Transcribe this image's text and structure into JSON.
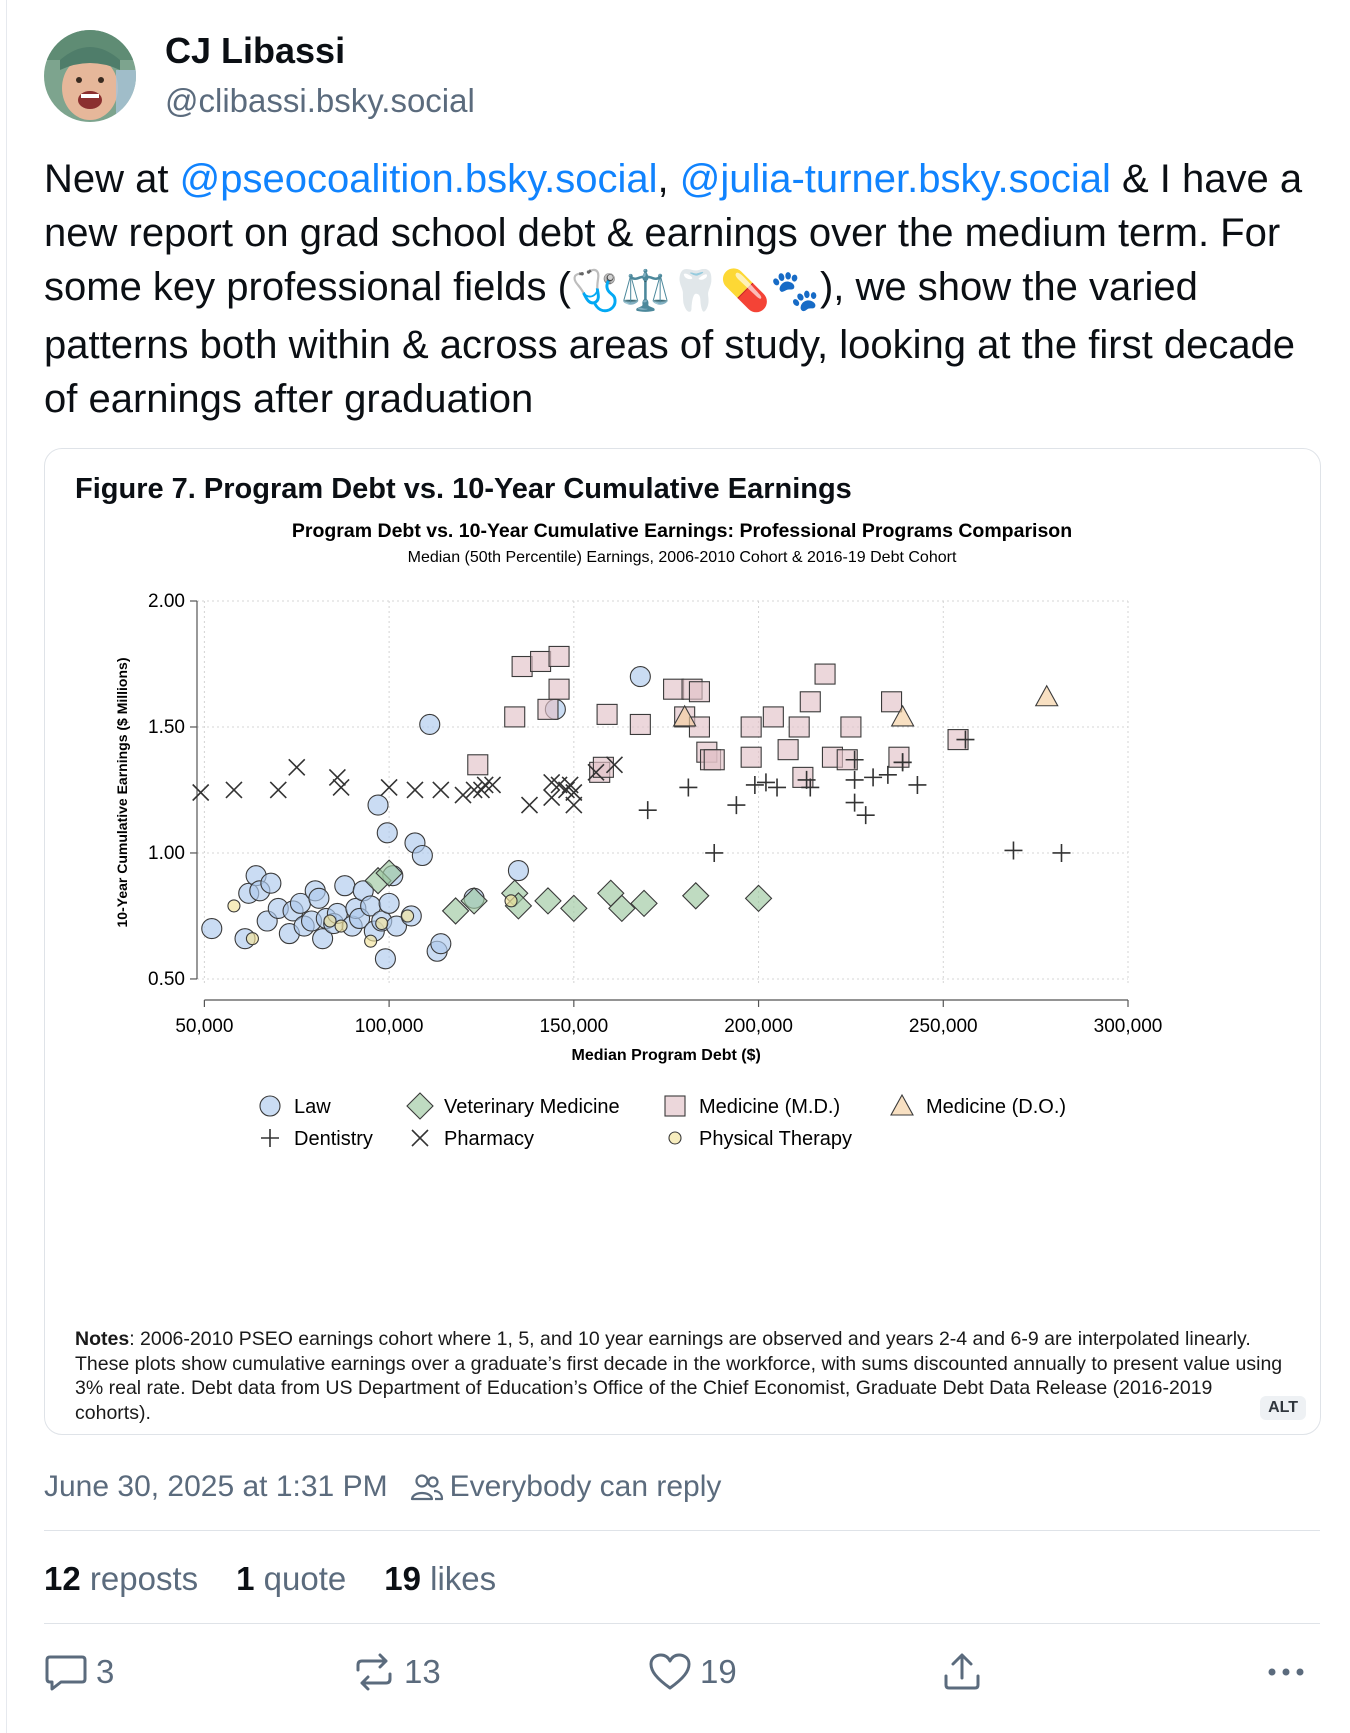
{
  "author": {
    "name": "CJ Libassi",
    "handle": "@clibassi.bsky.social"
  },
  "post": {
    "text_1": "New at ",
    "mention_1": "@pseocoalition.bsky.social",
    "text_2": ", ",
    "mention_2": "@julia-turner.bsky.social",
    "text_3": " & I have a new report on grad school debt & earnings over the medium term. For some key professional fields (",
    "emoji": "🩺⚖️🦷💊🐾",
    "text_4": "), we show the varied patterns both within & across areas of study, looking at the first decade of earnings after graduation"
  },
  "figure": {
    "caption": "Figure 7. Program Debt vs. 10-Year Cumulative Earnings",
    "notes_label": "Notes",
    "notes_text": ": 2006-2010 PSEO earnings cohort where 1, 5, and 10 year earnings are observed and years 2-4 and 6-9 are interpolated linearly. These plots show cumulative earnings over a graduate’s first decade in the workforce, with sums discounted annually to present value using 3% real rate. Debt data from US Department of Education’s Office of the Chief Economist, Graduate Debt Data Release (2016-2019 cohorts).",
    "alt_badge": "ALT"
  },
  "chart_data": {
    "type": "scatter",
    "title": "Program Debt vs. 10-Year Cumulative Earnings: Professional Programs Comparison",
    "subtitle": "Median (50th Percentile) Earnings, 2006-2010 Cohort & 2016-19 Debt Cohort",
    "xlabel": "Median Program Debt ($)",
    "ylabel": "10-Year Cumulative Earnings ($ Millions)",
    "xlim": [
      48000,
      300000
    ],
    "ylim": [
      0.48,
      2.0
    ],
    "xticks": [
      50000,
      100000,
      150000,
      200000,
      250000,
      300000
    ],
    "xtick_labels": [
      "50,000",
      "100,000",
      "150,000",
      "200,000",
      "250,000",
      "300,000"
    ],
    "yticks": [
      0.5,
      1.0,
      1.5,
      2.0
    ],
    "ytick_labels": [
      "0.50",
      "1.00",
      "1.50",
      "2.00"
    ],
    "grid": true,
    "legend_position": "bottom",
    "series": [
      {
        "name": "Law",
        "marker": "circle",
        "color": "#aec9ec",
        "points": [
          [
            52000,
            0.7
          ],
          [
            61000,
            0.66
          ],
          [
            62000,
            0.84
          ],
          [
            64000,
            0.91
          ],
          [
            65000,
            0.85
          ],
          [
            67000,
            0.73
          ],
          [
            68000,
            0.88
          ],
          [
            70000,
            0.78
          ],
          [
            73000,
            0.68
          ],
          [
            74000,
            0.77
          ],
          [
            76000,
            0.8
          ],
          [
            77000,
            0.71
          ],
          [
            79000,
            0.73
          ],
          [
            80000,
            0.85
          ],
          [
            81000,
            0.82
          ],
          [
            82000,
            0.66
          ],
          [
            83000,
            0.74
          ],
          [
            85000,
            0.72
          ],
          [
            86000,
            0.76
          ],
          [
            88000,
            0.87
          ],
          [
            90000,
            0.71
          ],
          [
            91000,
            0.78
          ],
          [
            92000,
            0.74
          ],
          [
            93000,
            0.85
          ],
          [
            95000,
            0.79
          ],
          [
            96000,
            0.69
          ],
          [
            97000,
            1.19
          ],
          [
            98000,
            0.73
          ],
          [
            99000,
            0.58
          ],
          [
            99500,
            1.08
          ],
          [
            100000,
            0.8
          ],
          [
            101000,
            0.91
          ],
          [
            102000,
            0.71
          ],
          [
            106000,
            0.75
          ],
          [
            107000,
            1.04
          ],
          [
            109000,
            0.99
          ],
          [
            111000,
            1.51
          ],
          [
            113000,
            0.61
          ],
          [
            114000,
            0.64
          ],
          [
            123000,
            0.82
          ],
          [
            135000,
            0.93
          ],
          [
            145000,
            1.57
          ],
          [
            168000,
            1.7
          ]
        ]
      },
      {
        "name": "Veterinary Medicine",
        "marker": "diamond",
        "color": "#9cc7a0",
        "points": [
          [
            97000,
            0.89
          ],
          [
            100000,
            0.92
          ],
          [
            118000,
            0.77
          ],
          [
            123000,
            0.81
          ],
          [
            134000,
            0.84
          ],
          [
            135000,
            0.79
          ],
          [
            143000,
            0.81
          ],
          [
            150000,
            0.78
          ],
          [
            160000,
            0.84
          ],
          [
            163000,
            0.78
          ],
          [
            169000,
            0.8
          ],
          [
            183000,
            0.83
          ],
          [
            200000,
            0.82
          ]
        ]
      },
      {
        "name": "Medicine (M.D.)",
        "marker": "square",
        "color": "#e2c2c8",
        "points": [
          [
            124000,
            1.35
          ],
          [
            134000,
            1.54
          ],
          [
            136000,
            1.74
          ],
          [
            141000,
            1.76
          ],
          [
            143000,
            1.57
          ],
          [
            146000,
            1.78
          ],
          [
            146000,
            1.65
          ],
          [
            157000,
            1.32
          ],
          [
            158000,
            1.34
          ],
          [
            159000,
            1.55
          ],
          [
            168000,
            1.51
          ],
          [
            177000,
            1.65
          ],
          [
            180000,
            1.54
          ],
          [
            182000,
            1.65
          ],
          [
            184000,
            1.64
          ],
          [
            184000,
            1.5
          ],
          [
            186000,
            1.4
          ],
          [
            187000,
            1.37
          ],
          [
            188000,
            1.37
          ],
          [
            198000,
            1.5
          ],
          [
            198000,
            1.38
          ],
          [
            204000,
            1.54
          ],
          [
            208000,
            1.41
          ],
          [
            211000,
            1.5
          ],
          [
            212000,
            1.3
          ],
          [
            214000,
            1.6
          ],
          [
            218000,
            1.71
          ],
          [
            220000,
            1.38
          ],
          [
            224000,
            1.37
          ],
          [
            225000,
            1.5
          ],
          [
            236000,
            1.6
          ],
          [
            238000,
            1.38
          ],
          [
            254000,
            1.45
          ]
        ]
      },
      {
        "name": "Medicine (D.O.)",
        "marker": "triangle",
        "color": "#f5cfa1",
        "points": [
          [
            180000,
            1.54
          ],
          [
            239000,
            1.54
          ],
          [
            278000,
            1.62
          ]
        ]
      },
      {
        "name": "Dentistry",
        "marker": "plus",
        "color": "#222222",
        "points": [
          [
            170000,
            1.17
          ],
          [
            181000,
            1.26
          ],
          [
            194000,
            1.19
          ],
          [
            199000,
            1.27
          ],
          [
            202000,
            1.28
          ],
          [
            205000,
            1.26
          ],
          [
            213000,
            1.29
          ],
          [
            214000,
            1.26
          ],
          [
            226000,
            1.29
          ],
          [
            226000,
            1.2
          ],
          [
            229000,
            1.15
          ],
          [
            231000,
            1.3
          ],
          [
            235000,
            1.31
          ],
          [
            243000,
            1.27
          ],
          [
            188000,
            1.0
          ],
          [
            269000,
            1.01
          ],
          [
            282000,
            1.0
          ],
          [
            256000,
            1.45
          ],
          [
            239000,
            1.36
          ],
          [
            226000,
            1.37
          ],
          [
            239000,
            1.36
          ]
        ]
      },
      {
        "name": "Pharmacy",
        "marker": "x",
        "color": "#222222",
        "points": [
          [
            49000,
            1.24
          ],
          [
            70000,
            1.25
          ],
          [
            75000,
            1.34
          ],
          [
            86000,
            1.3
          ],
          [
            87000,
            1.26
          ],
          [
            100000,
            1.26
          ],
          [
            107000,
            1.25
          ],
          [
            114000,
            1.25
          ],
          [
            120000,
            1.23
          ],
          [
            123000,
            1.25
          ],
          [
            125000,
            1.25
          ],
          [
            126000,
            1.27
          ],
          [
            128000,
            1.27
          ],
          [
            138000,
            1.19
          ],
          [
            144000,
            1.22
          ],
          [
            144000,
            1.28
          ],
          [
            146000,
            1.27
          ],
          [
            148000,
            1.25
          ],
          [
            149000,
            1.27
          ],
          [
            150000,
            1.24
          ],
          [
            150000,
            1.19
          ],
          [
            156000,
            1.32
          ],
          [
            161000,
            1.35
          ],
          [
            58000,
            1.25
          ]
        ]
      },
      {
        "name": "Physical Therapy",
        "marker": "circle-small",
        "color": "#f3e49b",
        "points": [
          [
            58000,
            0.79
          ],
          [
            63000,
            0.66
          ],
          [
            84000,
            0.73
          ],
          [
            87000,
            0.71
          ],
          [
            95000,
            0.65
          ],
          [
            98000,
            0.72
          ],
          [
            105000,
            0.75
          ],
          [
            133000,
            0.81
          ]
        ]
      }
    ]
  },
  "timestamp": "June 30, 2025 at 1:31 PM",
  "reply_setting": "Everybody can reply",
  "stats": {
    "reposts_count": "12",
    "reposts_label": "reposts",
    "quotes_count": "1",
    "quotes_label": "quote",
    "likes_count": "19",
    "likes_label": "likes"
  },
  "actions": {
    "replies": "3",
    "reposts": "13",
    "likes": "19"
  },
  "icons": [
    "avatar",
    "users-icon",
    "reply-icon",
    "repost-icon",
    "heart-icon",
    "share-icon",
    "more-icon"
  ],
  "colors": {
    "accent": "#1083fe",
    "muted": "#5b6b7d"
  }
}
